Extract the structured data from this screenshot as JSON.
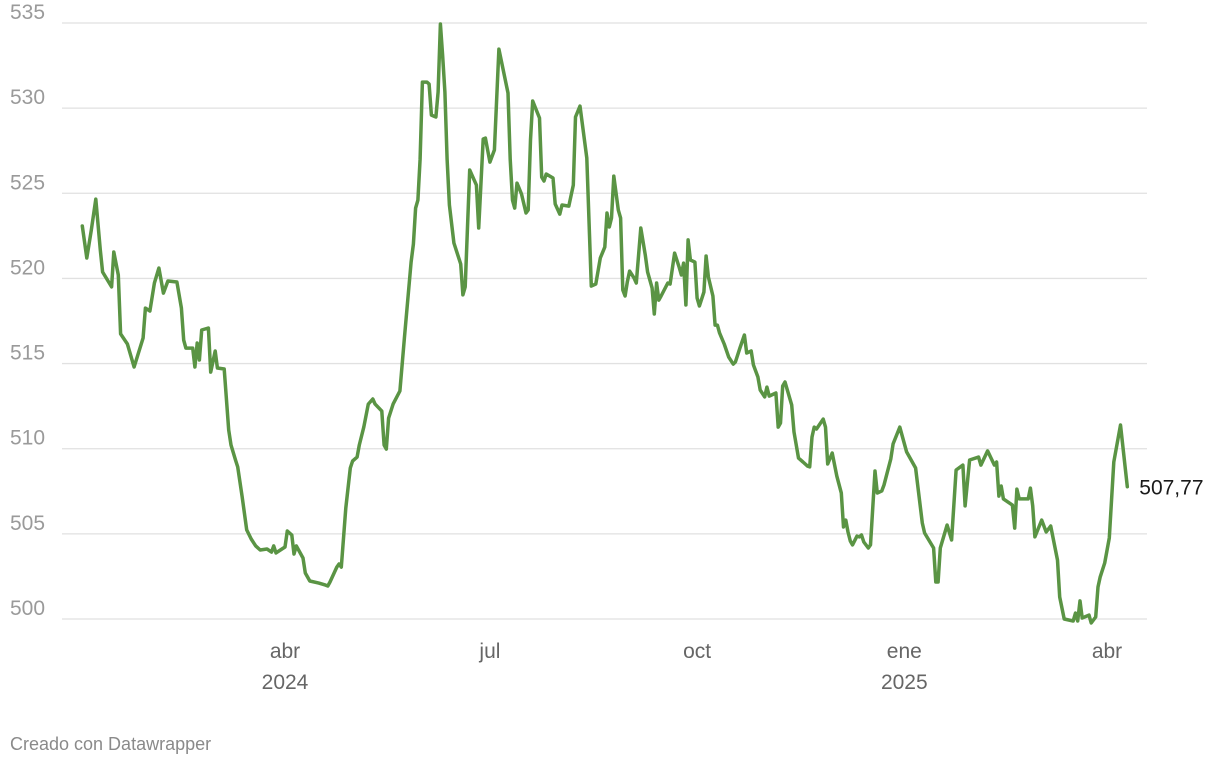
{
  "chart_data": {
    "type": "line",
    "title": "",
    "xlabel": "",
    "ylabel": "",
    "ylim": [
      500,
      535
    ],
    "grid": "horizontal",
    "legend": "none",
    "line_color": "#5a9444",
    "y_ticks": [
      "500",
      "505",
      "510",
      "515",
      "520",
      "525",
      "530",
      "535"
    ],
    "y_tick_values": [
      500,
      505,
      510,
      515,
      520,
      525,
      530,
      535
    ],
    "x_ticks": [
      {
        "date": "2024-04-01",
        "month": "abr",
        "year": "2024"
      },
      {
        "date": "2024-07-01",
        "month": "jul",
        "year": ""
      },
      {
        "date": "2024-10-01",
        "month": "oct",
        "year": ""
      },
      {
        "date": "2025-01-01",
        "month": "ene",
        "year": "2025"
      },
      {
        "date": "2025-04-01",
        "month": "abr",
        "year": ""
      }
    ],
    "end_label": "507,77",
    "points": [
      [
        "2024-01-02",
        523.08
      ],
      [
        "2024-01-04",
        521.2
      ],
      [
        "2024-01-06",
        522.84
      ],
      [
        "2024-01-08",
        524.66
      ],
      [
        "2024-01-10",
        521.67
      ],
      [
        "2024-01-11",
        520.38
      ],
      [
        "2024-01-15",
        519.5
      ],
      [
        "2024-01-16",
        521.55
      ],
      [
        "2024-01-18",
        520.2
      ],
      [
        "2024-01-19",
        516.74
      ],
      [
        "2024-01-22",
        516.15
      ],
      [
        "2024-01-25",
        514.8
      ],
      [
        "2024-01-29",
        516.5
      ],
      [
        "2024-01-30",
        518.26
      ],
      [
        "2024-02-01",
        518.09
      ],
      [
        "2024-02-03",
        519.73
      ],
      [
        "2024-02-05",
        520.61
      ],
      [
        "2024-02-07",
        519.14
      ],
      [
        "2024-02-09",
        519.85
      ],
      [
        "2024-02-13",
        519.79
      ],
      [
        "2024-02-15",
        518.26
      ],
      [
        "2024-02-16",
        516.38
      ],
      [
        "2024-02-17",
        515.91
      ],
      [
        "2024-02-20",
        515.91
      ],
      [
        "2024-02-21",
        514.8
      ],
      [
        "2024-02-22",
        516.21
      ],
      [
        "2024-02-23",
        515.21
      ],
      [
        "2024-02-24",
        516.97
      ],
      [
        "2024-02-27",
        517.09
      ],
      [
        "2024-02-28",
        514.5
      ],
      [
        "2024-03-01",
        515.74
      ],
      [
        "2024-03-02",
        514.74
      ],
      [
        "2024-03-05",
        514.68
      ],
      [
        "2024-03-07",
        511.1
      ],
      [
        "2024-03-08",
        510.22
      ],
      [
        "2024-03-10",
        509.34
      ],
      [
        "2024-03-11",
        508.93
      ],
      [
        "2024-03-13",
        507.16
      ],
      [
        "2024-03-15",
        505.23
      ],
      [
        "2024-03-17",
        504.7
      ],
      [
        "2024-03-19",
        504.29
      ],
      [
        "2024-03-21",
        504.05
      ],
      [
        "2024-03-24",
        504.11
      ],
      [
        "2024-03-26",
        503.93
      ],
      [
        "2024-03-27",
        504.29
      ],
      [
        "2024-03-28",
        503.88
      ],
      [
        "2024-04-01",
        504.23
      ],
      [
        "2024-04-02",
        505.17
      ],
      [
        "2024-04-04",
        504.93
      ],
      [
        "2024-04-05",
        503.82
      ],
      [
        "2024-04-06",
        504.29
      ],
      [
        "2024-04-09",
        503.58
      ],
      [
        "2024-04-10",
        502.7
      ],
      [
        "2024-04-12",
        502.23
      ],
      [
        "2024-04-16",
        502.11
      ],
      [
        "2024-04-19",
        501.99
      ],
      [
        "2024-04-20",
        501.94
      ],
      [
        "2024-04-21",
        502.17
      ],
      [
        "2024-04-24",
        503.05
      ],
      [
        "2024-04-25",
        503.23
      ],
      [
        "2024-04-26",
        503.05
      ],
      [
        "2024-04-28",
        506.52
      ],
      [
        "2024-04-30",
        508.87
      ],
      [
        "2024-05-01",
        509.28
      ],
      [
        "2024-05-03",
        509.51
      ],
      [
        "2024-05-04",
        510.22
      ],
      [
        "2024-05-06",
        511.27
      ],
      [
        "2024-05-08",
        512.62
      ],
      [
        "2024-05-10",
        512.92
      ],
      [
        "2024-05-11",
        512.62
      ],
      [
        "2024-05-14",
        512.21
      ],
      [
        "2024-05-15",
        510.22
      ],
      [
        "2024-05-16",
        509.98
      ],
      [
        "2024-05-17",
        511.8
      ],
      [
        "2024-05-19",
        512.62
      ],
      [
        "2024-05-22",
        513.39
      ],
      [
        "2024-05-24",
        516.5
      ],
      [
        "2024-05-27",
        520.96
      ],
      [
        "2024-05-28",
        522.02
      ],
      [
        "2024-05-29",
        524.13
      ],
      [
        "2024-05-30",
        524.6
      ],
      [
        "2024-05-31",
        527.01
      ],
      [
        "2024-06-01",
        531.53
      ],
      [
        "2024-06-03",
        531.53
      ],
      [
        "2024-06-04",
        531.41
      ],
      [
        "2024-06-05",
        529.59
      ],
      [
        "2024-06-07",
        529.48
      ],
      [
        "2024-06-08",
        530.95
      ],
      [
        "2024-06-09",
        534.94
      ],
      [
        "2024-06-10",
        533.12
      ],
      [
        "2024-06-11",
        530.95
      ],
      [
        "2024-06-12",
        527.01
      ],
      [
        "2024-06-13",
        524.31
      ],
      [
        "2024-06-15",
        522.08
      ],
      [
        "2024-06-18",
        520.85
      ],
      [
        "2024-06-19",
        519.03
      ],
      [
        "2024-06-20",
        519.5
      ],
      [
        "2024-06-22",
        526.37
      ],
      [
        "2024-06-25",
        525.48
      ],
      [
        "2024-06-26",
        522.96
      ],
      [
        "2024-06-28",
        528.19
      ],
      [
        "2024-06-29",
        528.24
      ],
      [
        "2024-07-01",
        526.83
      ],
      [
        "2024-07-03",
        527.54
      ],
      [
        "2024-07-05",
        533.47
      ],
      [
        "2024-07-09",
        530.89
      ],
      [
        "2024-07-10",
        527.01
      ],
      [
        "2024-07-11",
        524.6
      ],
      [
        "2024-07-12",
        524.13
      ],
      [
        "2024-07-13",
        525.6
      ],
      [
        "2024-07-15",
        524.96
      ],
      [
        "2024-07-17",
        523.84
      ],
      [
        "2024-07-18",
        524.02
      ],
      [
        "2024-07-19",
        528.13
      ],
      [
        "2024-07-20",
        530.42
      ],
      [
        "2024-07-23",
        529.42
      ],
      [
        "2024-07-24",
        525.95
      ],
      [
        "2024-07-25",
        525.72
      ],
      [
        "2024-07-26",
        526.13
      ],
      [
        "2024-07-29",
        525.9
      ],
      [
        "2024-07-30",
        524.37
      ],
      [
        "2024-08-01",
        523.78
      ],
      [
        "2024-08-02",
        524.31
      ],
      [
        "2024-08-05",
        524.25
      ],
      [
        "2024-08-07",
        525.48
      ],
      [
        "2024-08-08",
        529.48
      ],
      [
        "2024-08-10",
        530.12
      ],
      [
        "2024-08-13",
        527.07
      ],
      [
        "2024-08-15",
        519.55
      ],
      [
        "2024-08-17",
        519.67
      ],
      [
        "2024-08-19",
        521.2
      ],
      [
        "2024-08-21",
        521.84
      ],
      [
        "2024-08-22",
        523.84
      ],
      [
        "2024-08-23",
        523.02
      ],
      [
        "2024-08-24",
        523.55
      ],
      [
        "2024-08-25",
        526.01
      ],
      [
        "2024-08-27",
        524.02
      ],
      [
        "2024-08-28",
        523.55
      ],
      [
        "2024-08-29",
        519.32
      ],
      [
        "2024-08-30",
        518.97
      ],
      [
        "2024-08-31",
        519.79
      ],
      [
        "2024-09-01",
        520.43
      ],
      [
        "2024-09-03",
        520.02
      ],
      [
        "2024-09-04",
        519.73
      ],
      [
        "2024-09-06",
        522.96
      ],
      [
        "2024-09-08",
        521.37
      ],
      [
        "2024-09-09",
        520.38
      ],
      [
        "2024-09-11",
        519.44
      ],
      [
        "2024-09-12",
        517.91
      ],
      [
        "2024-09-13",
        519.73
      ],
      [
        "2024-09-14",
        518.73
      ],
      [
        "2024-09-15",
        518.97
      ],
      [
        "2024-09-18",
        519.73
      ],
      [
        "2024-09-19",
        519.67
      ],
      [
        "2024-09-21",
        521.49
      ],
      [
        "2024-09-23",
        520.67
      ],
      [
        "2024-09-24",
        520.2
      ],
      [
        "2024-09-25",
        520.9
      ],
      [
        "2024-09-26",
        518.44
      ],
      [
        "2024-09-27",
        522.26
      ],
      [
        "2024-09-28",
        521.08
      ],
      [
        "2024-09-30",
        520.96
      ],
      [
        "2024-10-01",
        518.85
      ],
      [
        "2024-10-02",
        518.38
      ],
      [
        "2024-10-04",
        519.2
      ],
      [
        "2024-10-05",
        521.32
      ],
      [
        "2024-10-06",
        520.08
      ],
      [
        "2024-10-08",
        518.97
      ],
      [
        "2024-10-09",
        517.26
      ],
      [
        "2024-10-10",
        517.26
      ],
      [
        "2024-10-11",
        516.79
      ],
      [
        "2024-10-13",
        516.15
      ],
      [
        "2024-10-15",
        515.38
      ],
      [
        "2024-10-17",
        514.97
      ],
      [
        "2024-10-18",
        515.09
      ],
      [
        "2024-10-20",
        515.91
      ],
      [
        "2024-10-22",
        516.68
      ],
      [
        "2024-10-23",
        515.62
      ],
      [
        "2024-10-25",
        515.74
      ],
      [
        "2024-10-26",
        514.92
      ],
      [
        "2024-10-28",
        514.21
      ],
      [
        "2024-10-29",
        513.45
      ],
      [
        "2024-10-31",
        513.04
      ],
      [
        "2024-11-01",
        513.62
      ],
      [
        "2024-11-02",
        513.09
      ],
      [
        "2024-11-05",
        513.27
      ],
      [
        "2024-11-06",
        511.27
      ],
      [
        "2024-11-07",
        511.51
      ],
      [
        "2024-11-08",
        513.68
      ],
      [
        "2024-11-09",
        513.92
      ],
      [
        "2024-11-12",
        512.57
      ],
      [
        "2024-11-13",
        510.98
      ],
      [
        "2024-11-15",
        509.45
      ],
      [
        "2024-11-17",
        509.22
      ],
      [
        "2024-11-19",
        508.98
      ],
      [
        "2024-11-20",
        508.93
      ],
      [
        "2024-11-21",
        510.69
      ],
      [
        "2024-11-22",
        511.27
      ],
      [
        "2024-11-23",
        511.16
      ],
      [
        "2024-11-26",
        511.74
      ],
      [
        "2024-11-27",
        511.27
      ],
      [
        "2024-11-28",
        509.1
      ],
      [
        "2024-11-30",
        509.75
      ],
      [
        "2024-12-02",
        508.4
      ],
      [
        "2024-12-04",
        507.4
      ],
      [
        "2024-12-05",
        505.4
      ],
      [
        "2024-12-06",
        505.81
      ],
      [
        "2024-12-07",
        505.11
      ],
      [
        "2024-12-08",
        504.58
      ],
      [
        "2024-12-09",
        504.35
      ],
      [
        "2024-12-11",
        504.87
      ],
      [
        "2024-12-12",
        504.82
      ],
      [
        "2024-12-13",
        504.93
      ],
      [
        "2024-12-14",
        504.52
      ],
      [
        "2024-12-16",
        504.17
      ],
      [
        "2024-12-17",
        504.35
      ],
      [
        "2024-12-19",
        508.69
      ],
      [
        "2024-12-20",
        507.4
      ],
      [
        "2024-12-22",
        507.52
      ],
      [
        "2024-12-23",
        507.87
      ],
      [
        "2024-12-26",
        509.4
      ],
      [
        "2024-12-27",
        510.28
      ],
      [
        "2024-12-30",
        511.27
      ],
      [
        "2025-01-02",
        509.81
      ],
      [
        "2025-01-06",
        508.87
      ],
      [
        "2025-01-09",
        505.64
      ],
      [
        "2025-01-10",
        505.05
      ],
      [
        "2025-01-14",
        504.17
      ],
      [
        "2025-01-15",
        502.17
      ],
      [
        "2025-01-16",
        502.17
      ],
      [
        "2025-01-17",
        504.17
      ],
      [
        "2025-01-20",
        505.52
      ],
      [
        "2025-01-22",
        504.64
      ],
      [
        "2025-01-24",
        508.75
      ],
      [
        "2025-01-27",
        509.04
      ],
      [
        "2025-01-28",
        506.64
      ],
      [
        "2025-01-30",
        509.34
      ],
      [
        "2025-02-03",
        509.51
      ],
      [
        "2025-02-04",
        509.04
      ],
      [
        "2025-02-07",
        509.87
      ],
      [
        "2025-02-10",
        509.04
      ],
      [
        "2025-02-11",
        509.22
      ],
      [
        "2025-02-12",
        507.22
      ],
      [
        "2025-02-13",
        507.81
      ],
      [
        "2025-02-14",
        507.05
      ],
      [
        "2025-02-18",
        506.69
      ],
      [
        "2025-02-19",
        505.34
      ],
      [
        "2025-02-20",
        507.63
      ],
      [
        "2025-02-21",
        507.05
      ],
      [
        "2025-02-25",
        507.05
      ],
      [
        "2025-02-26",
        507.69
      ],
      [
        "2025-02-27",
        506.64
      ],
      [
        "2025-02-28",
        504.82
      ],
      [
        "2025-03-03",
        505.81
      ],
      [
        "2025-03-05",
        505.11
      ],
      [
        "2025-03-07",
        505.46
      ],
      [
        "2025-03-10",
        503.46
      ],
      [
        "2025-03-11",
        501.29
      ],
      [
        "2025-03-13",
        500.0
      ],
      [
        "2025-03-17",
        499.88
      ],
      [
        "2025-03-18",
        500.35
      ],
      [
        "2025-03-19",
        499.88
      ],
      [
        "2025-03-20",
        501.06
      ],
      [
        "2025-03-21",
        500.06
      ],
      [
        "2025-03-24",
        500.23
      ],
      [
        "2025-03-25",
        499.77
      ],
      [
        "2025-03-27",
        500.12
      ],
      [
        "2025-03-28",
        501.88
      ],
      [
        "2025-03-29",
        502.47
      ],
      [
        "2025-03-31",
        503.29
      ],
      [
        "2025-04-02",
        504.76
      ],
      [
        "2025-04-04",
        509.22
      ],
      [
        "2025-04-07",
        511.39
      ],
      [
        "2025-04-10",
        507.77
      ]
    ]
  },
  "footer": {
    "credit": "Creado con Datawrapper"
  }
}
